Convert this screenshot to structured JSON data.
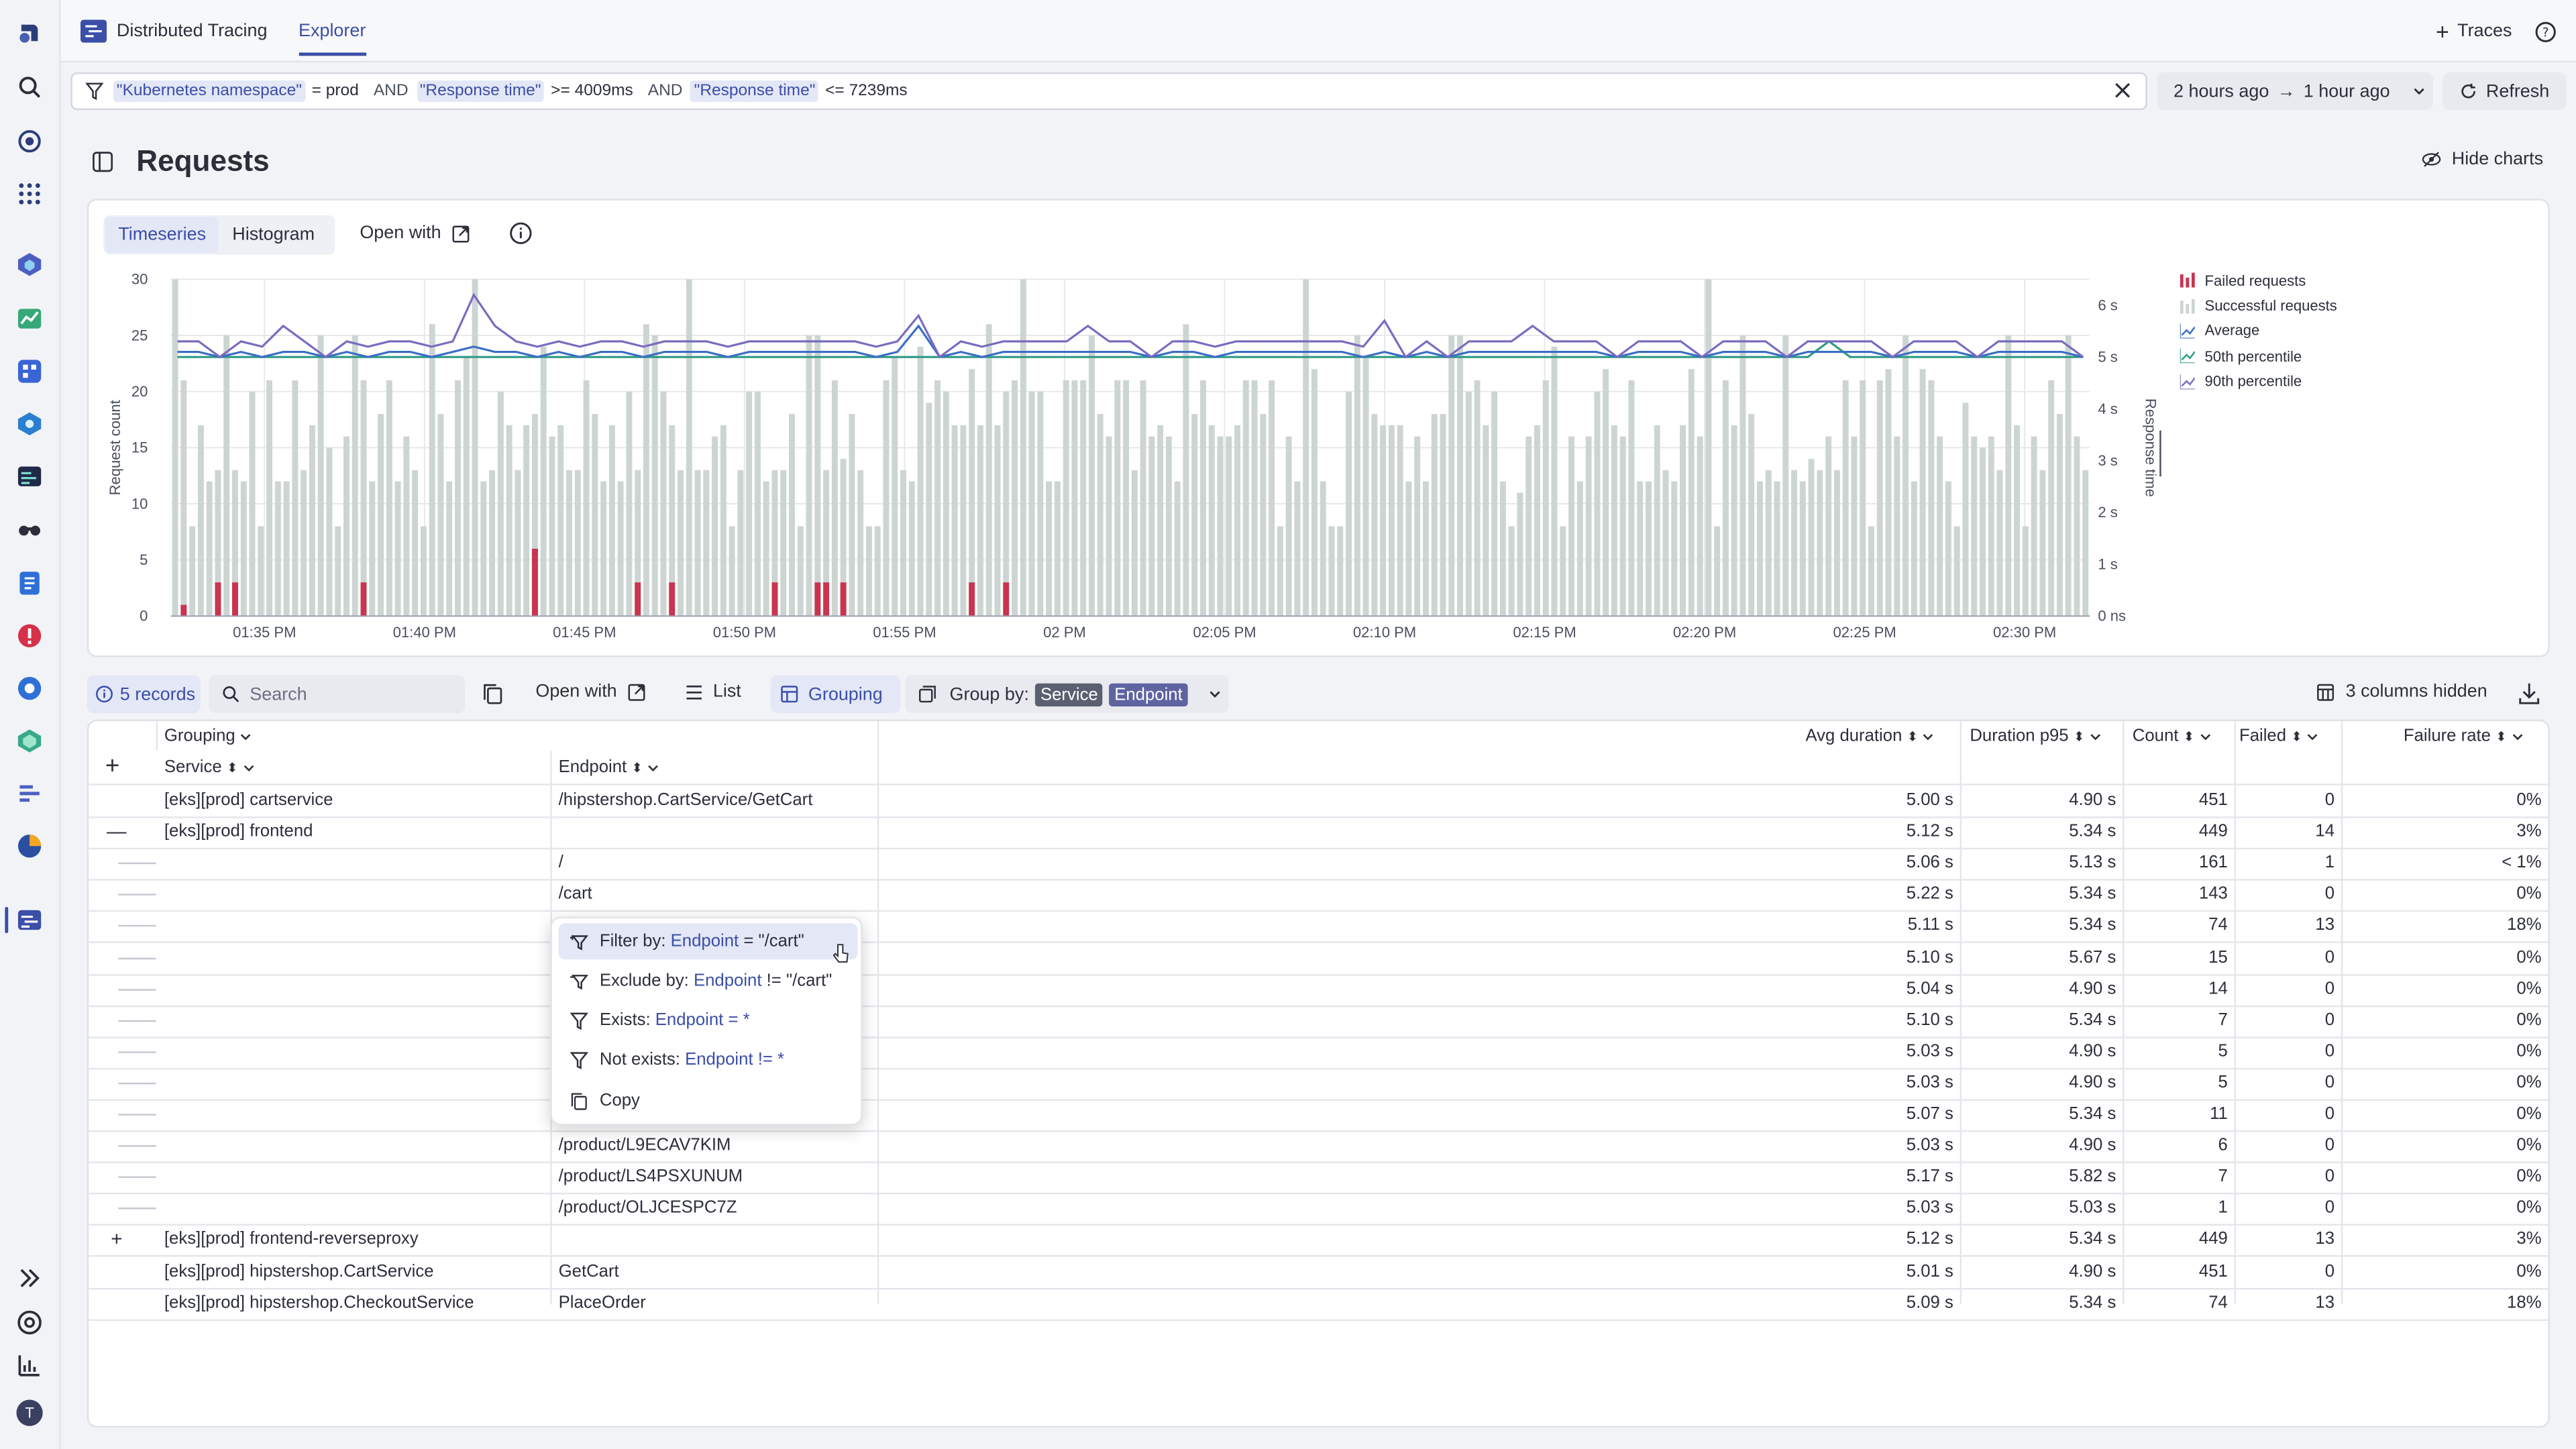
{
  "app": {
    "title": "Distributed Tracing",
    "tab": "Explorer"
  },
  "topbar": {
    "traces_label": "Traces"
  },
  "filter": {
    "tok1": "\"Kubernetes namespace\"",
    "op1": "= prod",
    "kw1": "AND",
    "tok2": "\"Response time\"",
    "op2": ">= 4009ms",
    "kw2": "AND",
    "tok3": "\"Response time\"",
    "op3": "<= 7239ms"
  },
  "timeframe": {
    "from": "2 hours ago",
    "arrow": "→",
    "to": "1 hour ago"
  },
  "refresh_label": "Refresh",
  "page_title": "Requests",
  "hide_charts_label": "Hide charts",
  "chart_tabs": {
    "timeseries": "Timeseries",
    "histogram": "Histogram",
    "open_with": "Open with"
  },
  "chart_data": {
    "type": "bar",
    "ylabel": "Request count",
    "y2label": "Response time",
    "ylim": [
      0,
      30
    ],
    "yticks": [
      "0",
      "5",
      "10",
      "15",
      "20",
      "25",
      "30"
    ],
    "y2ticks": [
      "0 ns",
      "1 s",
      "2 s",
      "3 s",
      "4 s",
      "5 s",
      "6 s"
    ],
    "y2lim": [
      0,
      6.5
    ],
    "xticks": [
      "01:35 PM",
      "01:40 PM",
      "01:45 PM",
      "01:50 PM",
      "01:55 PM",
      "02 PM",
      "02:05 PM",
      "02:10 PM",
      "02:15 PM",
      "02:20 PM",
      "02:25 PM",
      "02:30 PM"
    ],
    "x_start": "01:32 PM",
    "x_end": "02:33 PM",
    "legend": [
      "Failed requests",
      "Successful requests",
      "Average",
      "50th percentile",
      "90th percentile"
    ],
    "colors": {
      "failed": "#c9344f",
      "successful": "#cdd5d3",
      "average": "#3b6ec4",
      "p50": "#2f9a86",
      "p90": "#7a6bbf"
    },
    "successful": [
      30,
      21,
      8,
      17,
      12,
      13,
      25,
      13,
      12,
      20,
      8,
      21,
      12,
      12,
      21,
      13,
      17,
      25,
      15,
      8,
      16,
      25,
      21,
      12,
      18,
      21,
      12,
      16,
      13,
      8,
      26,
      18,
      12,
      21,
      23,
      30,
      12,
      13,
      20,
      17,
      13,
      17,
      18,
      24,
      16,
      17,
      13,
      13,
      21,
      18,
      12,
      17,
      12,
      20,
      13,
      26,
      25,
      20,
      17,
      13,
      30,
      13,
      13,
      16,
      17,
      8,
      13,
      20,
      20,
      12,
      13,
      13,
      18,
      8,
      25,
      25,
      13,
      21,
      14,
      18,
      13,
      8,
      8,
      21,
      23,
      13,
      12,
      24,
      19,
      21,
      20,
      17,
      17,
      22,
      17,
      26,
      17,
      20,
      21,
      30,
      20,
      20,
      12,
      12,
      21,
      21,
      21,
      25,
      18,
      16,
      21,
      21,
      13,
      21,
      16,
      17,
      16,
      12,
      26,
      18,
      21,
      17,
      16,
      16,
      17,
      21,
      21,
      18,
      21,
      8,
      16,
      12,
      30,
      22,
      12,
      8,
      8,
      20,
      25,
      23,
      18,
      17,
      17,
      17,
      12,
      16,
      12,
      18,
      18,
      25,
      25,
      20,
      21,
      17,
      20,
      12,
      8,
      11,
      16,
      17,
      21,
      24,
      8,
      16,
      12,
      16,
      20,
      22,
      17,
      16,
      21,
      12,
      12,
      17,
      13,
      12,
      17,
      22,
      16,
      30,
      8,
      21,
      17,
      25,
      18,
      12,
      13,
      12,
      25,
      13,
      12,
      14,
      13,
      16,
      13,
      21,
      16,
      21,
      8,
      21,
      22,
      16,
      25,
      12,
      22,
      21,
      16,
      12,
      8,
      19,
      16,
      15,
      16,
      13,
      25,
      17,
      8,
      16,
      13,
      21,
      18,
      25,
      16,
      13
    ],
    "failed": [
      0,
      1,
      0,
      0,
      0,
      3,
      0,
      3,
      0,
      0,
      0,
      0,
      0,
      0,
      0,
      0,
      0,
      0,
      0,
      0,
      0,
      0,
      3,
      0,
      0,
      0,
      0,
      0,
      0,
      0,
      0,
      0,
      0,
      0,
      0,
      0,
      0,
      0,
      0,
      0,
      0,
      0,
      6,
      0,
      0,
      0,
      0,
      0,
      0,
      0,
      0,
      0,
      0,
      0,
      3,
      0,
      0,
      0,
      3,
      0,
      0,
      0,
      0,
      0,
      0,
      0,
      0,
      0,
      0,
      0,
      3,
      0,
      0,
      0,
      0,
      3,
      3,
      0,
      3,
      0,
      0,
      0,
      0,
      0,
      0,
      0,
      0,
      0,
      0,
      0,
      0,
      0,
      0,
      3,
      0,
      0,
      0,
      3,
      0,
      0,
      0,
      0,
      0,
      0,
      0,
      0,
      0,
      0,
      0,
      0,
      0,
      0,
      0,
      0,
      0,
      0,
      0,
      0,
      0,
      0,
      0,
      0,
      0,
      0,
      0,
      0,
      0,
      0,
      0,
      0,
      0,
      0,
      0,
      0,
      0,
      0,
      0,
      0,
      0,
      0,
      0,
      0,
      0,
      0,
      0,
      0,
      0,
      0,
      0,
      0,
      0,
      0,
      0,
      0,
      0,
      0,
      0,
      0,
      0,
      0,
      0,
      0,
      0,
      0,
      0,
      0,
      0,
      0,
      0,
      0,
      0,
      0,
      0,
      0,
      0,
      0,
      0,
      0,
      0,
      0,
      0,
      0,
      0,
      0,
      0,
      0,
      0,
      0,
      0,
      0,
      0,
      0,
      0,
      0,
      0,
      0,
      0,
      0,
      0,
      0,
      0,
      0,
      0,
      0,
      0,
      0,
      0,
      0,
      0,
      0,
      0,
      0,
      0,
      0,
      0,
      0,
      0,
      0,
      0,
      0,
      0,
      0,
      0,
      0,
      0,
      0,
      0,
      0,
      0,
      0,
      0,
      0,
      0
    ],
    "p90": [
      5.3,
      5.3,
      5.0,
      5.3,
      5.2,
      5.6,
      5.3,
      5.0,
      5.3,
      5.2,
      5.3,
      5.3,
      5.2,
      5.3,
      6.2,
      5.6,
      5.3,
      5.2,
      5.3,
      5.2,
      5.3,
      5.3,
      5.2,
      5.3,
      5.3,
      5.3,
      5.2,
      5.3,
      5.3,
      5.3,
      5.3,
      5.3,
      5.3,
      5.2,
      5.3,
      5.8,
      5.0,
      5.3,
      5.2,
      5.3,
      5.3,
      5.3,
      5.3,
      5.6,
      5.3,
      5.3,
      5.0,
      5.3,
      5.3,
      5.2,
      5.3,
      5.3,
      5.3,
      5.3,
      5.3,
      5.3,
      5.2,
      5.7,
      5.0,
      5.3,
      5.0,
      5.3,
      5.3,
      5.3,
      5.6,
      5.3,
      5.3,
      5.3,
      5.0,
      5.3,
      5.3,
      5.3,
      5.0,
      5.3,
      5.3,
      5.3,
      5.0,
      5.3,
      5.3,
      5.3,
      5.3,
      5.0,
      5.3,
      5.3,
      5.3,
      5.0,
      5.3,
      5.3,
      5.3,
      5.3,
      5.0
    ],
    "average": [
      5.1,
      5.1,
      5.0,
      5.1,
      5.0,
      5.1,
      5.1,
      5.0,
      5.1,
      5.0,
      5.1,
      5.1,
      5.0,
      5.1,
      5.2,
      5.1,
      5.1,
      5.0,
      5.1,
      5.0,
      5.1,
      5.1,
      5.0,
      5.1,
      5.1,
      5.1,
      5.0,
      5.1,
      5.1,
      5.1,
      5.1,
      5.1,
      5.1,
      5.0,
      5.1,
      5.6,
      5.0,
      5.1,
      5.0,
      5.1,
      5.1,
      5.1,
      5.1,
      5.1,
      5.1,
      5.1,
      5.0,
      5.1,
      5.1,
      5.0,
      5.1,
      5.1,
      5.1,
      5.1,
      5.1,
      5.1,
      5.0,
      5.1,
      5.0,
      5.1,
      5.0,
      5.1,
      5.1,
      5.1,
      5.1,
      5.1,
      5.1,
      5.1,
      5.0,
      5.1,
      5.1,
      5.1,
      5.0,
      5.1,
      5.1,
      5.1,
      5.0,
      5.1,
      5.1,
      5.1,
      5.1,
      5.0,
      5.1,
      5.1,
      5.1,
      5.0,
      5.1,
      5.1,
      5.1,
      5.1,
      5.0
    ],
    "p50": [
      5.0,
      5.0,
      5.0,
      5.0,
      5.0,
      5.0,
      5.0,
      5.0,
      5.0,
      5.0,
      5.0,
      5.0,
      5.0,
      5.0,
      5.0,
      5.0,
      5.0,
      5.0,
      5.0,
      5.0,
      5.0,
      5.0,
      5.0,
      5.0,
      5.0,
      5.0,
      5.0,
      5.0,
      5.0,
      5.0,
      5.0,
      5.0,
      5.0,
      5.0,
      5.0,
      5.0,
      5.0,
      5.0,
      5.0,
      5.0,
      5.0,
      5.0,
      5.0,
      5.0,
      5.0,
      5.0,
      5.0,
      5.0,
      5.0,
      5.0,
      5.0,
      5.0,
      5.0,
      5.0,
      5.0,
      5.0,
      5.0,
      5.0,
      5.0,
      5.0,
      5.0,
      5.0,
      5.0,
      5.0,
      5.0,
      5.0,
      5.0,
      5.0,
      5.0,
      5.0,
      5.0,
      5.0,
      5.0,
      5.0,
      5.0,
      5.0,
      5.0,
      5.0,
      5.3,
      5.0,
      5.0,
      5.0,
      5.0,
      5.0,
      5.0,
      5.0,
      5.0,
      5.0,
      5.0,
      5.0,
      5.0
    ]
  },
  "toolbar": {
    "records": "5 records",
    "search_placeholder": "Search",
    "open_with": "Open with",
    "list": "List",
    "grouping": "Grouping",
    "group_by": "Group by:",
    "chip_service": "Service",
    "chip_endpoint": "Endpoint",
    "cols_hidden": "3 columns hidden"
  },
  "table": {
    "grouping_header": "Grouping",
    "columns": {
      "service": "Service",
      "endpoint": "Endpoint",
      "avg": "Avg duration",
      "p95": "Duration p95",
      "count": "Count",
      "failed": "Failed",
      "rate": "Failure rate"
    },
    "rows": [
      {
        "toggle": "",
        "service": "[eks][prod] cartservice",
        "endpoint": "/hipstershop.CartService/GetCart",
        "avg": "5.00 s",
        "p95": "4.90 s",
        "count": "451",
        "failed": "0",
        "rate": "0%"
      },
      {
        "toggle": "—",
        "service": "[eks][prod] frontend",
        "endpoint": "",
        "avg": "5.12 s",
        "p95": "5.34 s",
        "count": "449",
        "failed": "14",
        "rate": "3%"
      },
      {
        "toggle": "",
        "service": "",
        "endpoint": "/",
        "avg": "5.06 s",
        "p95": "5.13 s",
        "count": "161",
        "failed": "1",
        "rate": "< 1%"
      },
      {
        "toggle": "",
        "service": "",
        "endpoint": "/cart",
        "avg": "5.22 s",
        "p95": "5.34 s",
        "count": "143",
        "failed": "0",
        "rate": "0%"
      },
      {
        "toggle": "",
        "service": "",
        "endpoint": "",
        "avg": "5.11 s",
        "p95": "5.34 s",
        "count": "74",
        "failed": "13",
        "rate": "18%"
      },
      {
        "toggle": "",
        "service": "",
        "endpoint": "",
        "avg": "5.10 s",
        "p95": "5.67 s",
        "count": "15",
        "failed": "0",
        "rate": "0%"
      },
      {
        "toggle": "",
        "service": "",
        "endpoint": "",
        "avg": "5.04 s",
        "p95": "4.90 s",
        "count": "14",
        "failed": "0",
        "rate": "0%"
      },
      {
        "toggle": "",
        "service": "",
        "endpoint": "",
        "avg": "5.10 s",
        "p95": "5.34 s",
        "count": "7",
        "failed": "0",
        "rate": "0%"
      },
      {
        "toggle": "",
        "service": "",
        "endpoint": "",
        "avg": "5.03 s",
        "p95": "4.90 s",
        "count": "5",
        "failed": "0",
        "rate": "0%"
      },
      {
        "toggle": "",
        "service": "",
        "endpoint": "",
        "avg": "5.03 s",
        "p95": "4.90 s",
        "count": "5",
        "failed": "0",
        "rate": "0%"
      },
      {
        "toggle": "",
        "service": "",
        "endpoint": "",
        "avg": "5.07 s",
        "p95": "5.34 s",
        "count": "11",
        "failed": "0",
        "rate": "0%"
      },
      {
        "toggle": "",
        "service": "",
        "endpoint": "/product/L9ECAV7KIM",
        "avg": "5.03 s",
        "p95": "4.90 s",
        "count": "6",
        "failed": "0",
        "rate": "0%"
      },
      {
        "toggle": "",
        "service": "",
        "endpoint": "/product/LS4PSXUNUM",
        "avg": "5.17 s",
        "p95": "5.82 s",
        "count": "7",
        "failed": "0",
        "rate": "0%"
      },
      {
        "toggle": "",
        "service": "",
        "endpoint": "/product/OLJCESPC7Z",
        "avg": "5.03 s",
        "p95": "5.03 s",
        "count": "1",
        "failed": "0",
        "rate": "0%"
      },
      {
        "toggle": "+",
        "service": "[eks][prod] frontend-reverseproxy",
        "endpoint": "",
        "avg": "5.12 s",
        "p95": "5.34 s",
        "count": "449",
        "failed": "13",
        "rate": "3%"
      },
      {
        "toggle": "",
        "service": "[eks][prod] hipstershop.CartService",
        "endpoint": "GetCart",
        "avg": "5.01 s",
        "p95": "4.90 s",
        "count": "451",
        "failed": "0",
        "rate": "0%"
      },
      {
        "toggle": "",
        "service": "[eks][prod] hipstershop.CheckoutService",
        "endpoint": "PlaceOrder",
        "avg": "5.09 s",
        "p95": "5.34 s",
        "count": "74",
        "failed": "13",
        "rate": "18%"
      }
    ]
  },
  "context_menu": {
    "filter_by": "Filter by:",
    "filter_field": "Endpoint",
    "filter_val": "= \"/cart\"",
    "exclude_by": "Exclude by:",
    "exclude_field": "Endpoint",
    "exclude_val": "!= \"/cart\"",
    "exists": "Exists:",
    "exists_field": "Endpoint",
    "exists_val": "= *",
    "not_exists": "Not exists:",
    "not_exists_field": "Endpoint",
    "not_exists_val": "!= *",
    "copy": "Copy"
  },
  "avatar_initial": "T"
}
